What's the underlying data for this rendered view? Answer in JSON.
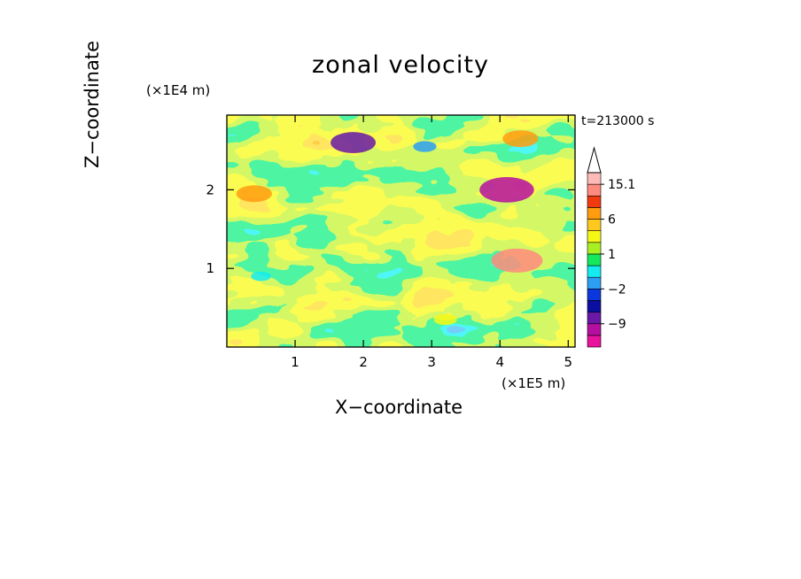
{
  "chart_data": {
    "type": "heatmap",
    "title": "zonal velocity",
    "xlabel": "X−coordinate",
    "ylabel": "Z−coordinate",
    "x_unit": "(×1E5 m)",
    "y_unit": "(×1E4 m)",
    "annotation": "t=213000 s",
    "x_ticks": [
      1,
      2,
      3,
      4,
      5
    ],
    "y_ticks": [
      1,
      2
    ],
    "xlim": [
      0,
      5.1
    ],
    "ylim": [
      0,
      2.95
    ],
    "colorbar": {
      "labels": [
        15.1,
        6,
        1,
        -2,
        -9
      ],
      "label_text": [
        "15.1",
        "6",
        "1",
        "−2",
        "−9"
      ],
      "levels": [
        -20,
        -12,
        -9,
        -7,
        -4,
        -2,
        -1,
        0,
        1,
        2,
        4,
        6,
        8,
        11,
        15.1,
        20
      ],
      "colors": [
        "#e8129c",
        "#b50fa0",
        "#6a18a6",
        "#0b0fa0",
        "#0b38dd",
        "#2d9ff2",
        "#15ecf0",
        "#14e85c",
        "#a8f022",
        "#f5f816",
        "#ffc81e",
        "#ff9c10",
        "#f23a10",
        "#ff8a7e",
        "#fdbbb8"
      ]
    },
    "features": [
      {
        "x": 4.25,
        "z": 1.1,
        "value": 11
      },
      {
        "x": 4.1,
        "z": 2.0,
        "value": -12
      },
      {
        "x": 1.85,
        "z": 2.6,
        "value": -9
      },
      {
        "x": 4.3,
        "z": 2.65,
        "value": 6
      },
      {
        "x": 0.4,
        "z": 1.95,
        "value": 6
      },
      {
        "x": 0.5,
        "z": 0.9,
        "value": -1
      },
      {
        "x": 2.9,
        "z": 2.55,
        "value": -2
      },
      {
        "x": 3.2,
        "z": 0.35,
        "value": 2
      }
    ]
  }
}
